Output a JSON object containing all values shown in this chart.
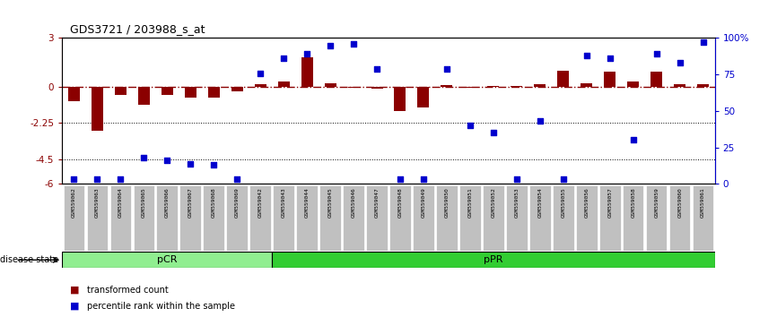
{
  "title": "GDS3721 / 203988_s_at",
  "samples": [
    "GSM559062",
    "GSM559063",
    "GSM559064",
    "GSM559065",
    "GSM559066",
    "GSM559067",
    "GSM559068",
    "GSM559069",
    "GSM559042",
    "GSM559043",
    "GSM559044",
    "GSM559045",
    "GSM559046",
    "GSM559047",
    "GSM559048",
    "GSM559049",
    "GSM559050",
    "GSM559051",
    "GSM559052",
    "GSM559053",
    "GSM559054",
    "GSM559055",
    "GSM559056",
    "GSM559057",
    "GSM559058",
    "GSM559059",
    "GSM559060",
    "GSM559061"
  ],
  "bar_values": [
    -0.9,
    -2.7,
    -0.5,
    -1.1,
    -0.5,
    -0.7,
    -0.7,
    -0.3,
    0.15,
    0.3,
    1.8,
    0.2,
    -0.05,
    -0.15,
    -1.5,
    -1.3,
    0.1,
    -0.05,
    0.05,
    0.05,
    0.15,
    1.0,
    0.2,
    0.9,
    0.3,
    0.9,
    0.15,
    0.15
  ],
  "percentile_values": [
    3,
    3,
    3,
    18,
    16,
    14,
    13,
    3,
    76,
    86,
    89,
    95,
    96,
    79,
    3,
    3,
    79,
    40,
    35,
    3,
    43,
    3,
    88,
    86,
    30,
    89,
    83,
    97
  ],
  "pCR_count": 9,
  "ylim_left": [
    -6,
    3
  ],
  "ylim_right": [
    0,
    100
  ],
  "yticks_left": [
    3,
    0,
    -2.25,
    -4.5,
    -6
  ],
  "yticks_right": [
    100,
    75,
    50,
    25,
    0
  ],
  "bar_color": "#8B0000",
  "dot_color": "#0000CD",
  "pCR_color": "#90EE90",
  "pPR_color": "#32CD32",
  "tick_bg_color": "#C0C0C0",
  "disease_state_label": "disease state",
  "pCR_label": "pCR",
  "pPR_label": "pPR",
  "legend_bar_label": "transformed count",
  "legend_dot_label": "percentile rank within the sample"
}
